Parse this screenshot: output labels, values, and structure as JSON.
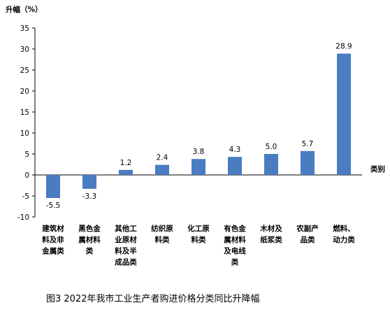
{
  "chart_data": {
    "type": "bar",
    "title": "图3   2022年我市工业生产者购进价格分类同比升降幅",
    "ylabel": "升幅（%）",
    "xlabel": "类别",
    "ylim": [
      -10,
      35
    ],
    "yticks": [
      "-10",
      "-5",
      "0",
      "5",
      "10",
      "15",
      "20",
      "25",
      "30",
      "35"
    ],
    "categories": [
      [
        "建筑材",
        "料及非",
        "金属类"
      ],
      [
        "黑色金",
        "属材料",
        "类"
      ],
      [
        "其他工",
        "业原材",
        "料及半",
        "成品类"
      ],
      [
        "纺织原",
        "料类"
      ],
      [
        "化工原",
        "料类"
      ],
      [
        "有色金",
        "属材料",
        "及电线",
        "类"
      ],
      [
        "木材及",
        "纸浆类"
      ],
      [
        "农副产",
        "品类"
      ],
      [
        "燃料、",
        "动力类"
      ]
    ],
    "values": [
      -5.5,
      -3.3,
      1.2,
      2.4,
      3.8,
      4.3,
      5.0,
      5.7,
      28.9
    ],
    "value_labels": [
      "-5.5",
      "-3.3",
      "1.2",
      "2.4",
      "3.8",
      "4.3",
      "5.0",
      "5.7",
      "28.9"
    ],
    "bar_color": "#4a7cc1",
    "grid": false,
    "legend": "none"
  }
}
